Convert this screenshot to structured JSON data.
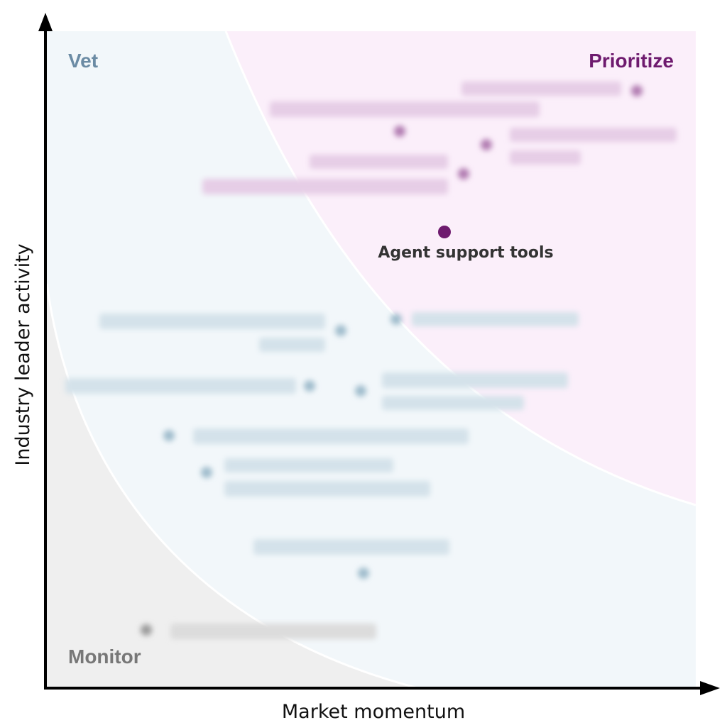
{
  "chart_data": {
    "type": "scatter",
    "xlabel": "Market momentum",
    "ylabel": "Industry leader activity",
    "zones": [
      {
        "name": "Vet",
        "color": "#6b8ba4"
      },
      {
        "name": "Prioritize",
        "color": "#6e1a6e"
      },
      {
        "name": "Monitor",
        "color": "#777777"
      }
    ],
    "points": [
      {
        "label": "Agent support tools",
        "zone": "Prioritize",
        "highlighted": true,
        "color": "#6e1a6e"
      }
    ],
    "obscured_point_color": {
      "Prioritize": "#b07ab0",
      "Vet": "#9fbccc",
      "Monitor": "#9a9a9a"
    },
    "zone_fill": {
      "Prioritize": "#fbeffa",
      "Vet": "#f2f7fa",
      "Monitor": "#efefef"
    }
  }
}
